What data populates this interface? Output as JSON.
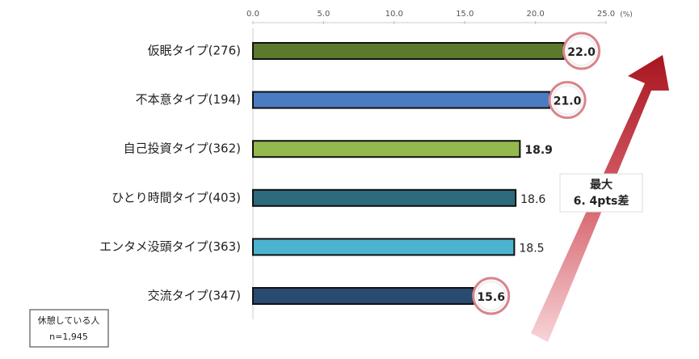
{
  "chart_data": {
    "type": "bar",
    "orientation": "horizontal",
    "axis_unit": "(%)",
    "categories": [
      "仮眠タイプ(276)",
      "不本意タイプ(194)",
      "自己投資タイプ(362)",
      "ひとり時間タイプ(403)",
      "エンタメ没頭タイプ(363)",
      "交流タイプ(347)"
    ],
    "values": [
      22.0,
      21.0,
      18.9,
      18.6,
      18.5,
      15.6
    ],
    "value_labels": [
      "22.0",
      "21.0",
      "18.9",
      "18.6",
      "18.5",
      "15.6"
    ],
    "value_label_style": [
      "circled",
      "circled",
      "bold",
      "plain",
      "plain",
      "circled"
    ],
    "colors": [
      "#5b7a2e",
      "#4a7cc4",
      "#94b94f",
      "#2b6b7b",
      "#4cb3cf",
      "#2a4b70"
    ],
    "xlim": [
      0,
      25
    ],
    "xticks": [
      {
        "value": 0,
        "label": "0.0"
      },
      {
        "value": 5,
        "label": "5.0"
      },
      {
        "value": 10,
        "label": "10.0"
      },
      {
        "value": 15,
        "label": "15.0"
      },
      {
        "value": 20,
        "label": "20.0"
      },
      {
        "value": 25,
        "label": "25.0"
      }
    ],
    "annotation": [
      "最大",
      "6. 4pts差"
    ],
    "note": [
      "休憩している人",
      "n=1,945"
    ]
  }
}
